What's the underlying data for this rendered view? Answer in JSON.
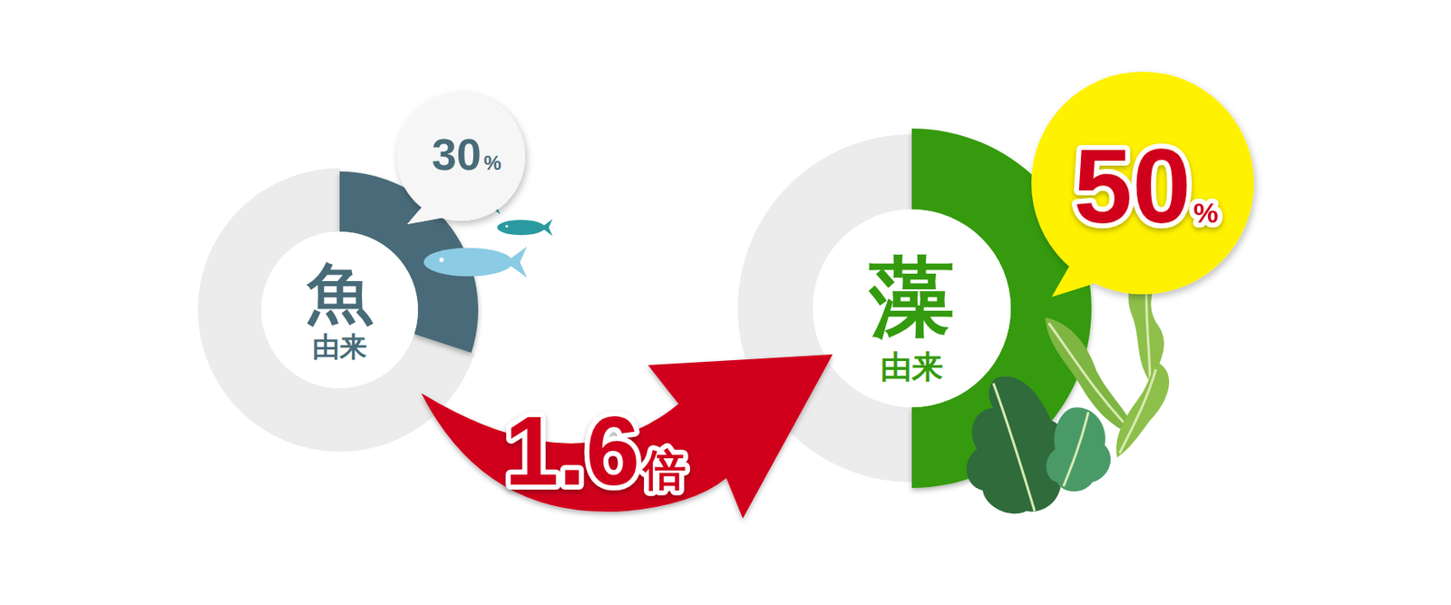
{
  "chart_data": [
    {
      "type": "donut",
      "title": "魚",
      "subtitle": "由来",
      "values": [
        30,
        70
      ],
      "value_labels": [
        "30%",
        null
      ],
      "colors": [
        "#486b78",
        "#ececec"
      ],
      "data_labels": true
    },
    {
      "type": "donut",
      "title": "藻",
      "subtitle": "由来",
      "values": [
        50,
        50
      ],
      "value_labels": [
        "50%",
        null
      ],
      "colors": [
        "#349a0e",
        "#ececec"
      ],
      "data_labels": true,
      "annotations": [
        {
          "text": "1.6倍"
        }
      ]
    }
  ]
}
